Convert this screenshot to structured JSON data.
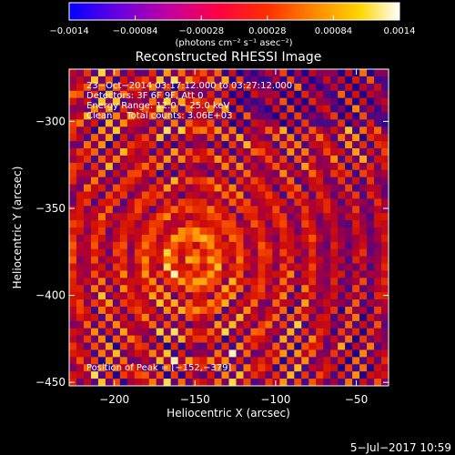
{
  "chart_data": {
    "type": "heatmap",
    "title": "Reconstructed RHESSI Image",
    "xlabel": "Heliocentric X (arcsec)",
    "ylabel": "Heliocentric Y (arcsec)",
    "xlim": [
      -228,
      -30
    ],
    "ylim": [
      -452,
      -270
    ],
    "x_ticks": [
      -200,
      -150,
      -100,
      -50
    ],
    "y_ticks": [
      -300,
      -350,
      -400,
      -450
    ],
    "x_tick_labels": [
      "−200",
      "−150",
      "−100",
      "−50"
    ],
    "y_tick_labels": [
      "−300",
      "−350",
      "−400",
      "−450"
    ],
    "colorbar": {
      "range": [
        -0.0014,
        0.0014
      ],
      "ticks": [
        -0.0014,
        -0.00084,
        -0.00028,
        0.00028,
        0.00084,
        0.0014
      ],
      "tick_labels": [
        "−0.0014",
        "−0.00084",
        "−0.00028",
        "0.00028",
        "0.00084",
        "0.0014"
      ],
      "unit_label": "(photons cm⁻² s⁻¹ asec⁻²)"
    },
    "peak": [
      -152,
      -379
    ],
    "annotations": [
      "23−Oct−2014 03:17:12.000 to 03:27:12.000",
      "Detectors: 3F 6F 9F, Att 0",
      "Energy Range: 12.0 − 25.0 keV",
      "Clean     Total counts: 3.06E+03"
    ],
    "peak_label": "Position of Peak = [−152,−379]"
  },
  "footer_date": "5−Jul−2017 10:59"
}
